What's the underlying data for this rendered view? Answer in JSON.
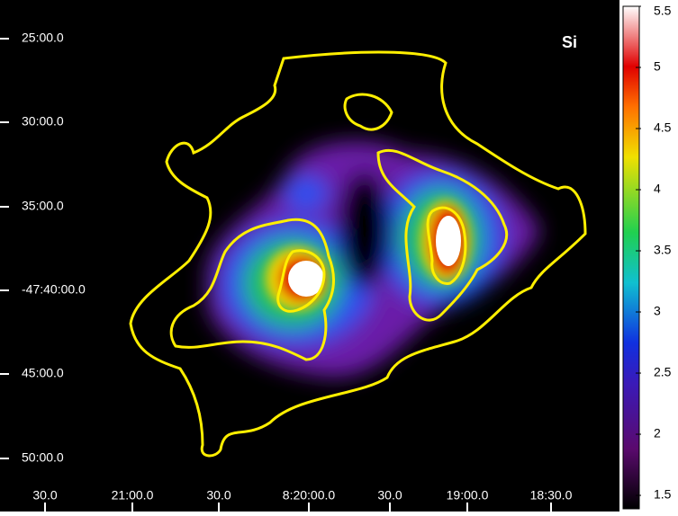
{
  "chart_data": {
    "type": "image",
    "label": "Si",
    "x_tick_labels": [
      "30.0",
      "21:00.0",
      "30.0",
      "8:20:00.0",
      "30.0",
      "19:00.0",
      "18:30.0"
    ],
    "y_tick_labels": [
      "25:00.0",
      "30:00.0",
      "35:00.0",
      "-47:40:00.0",
      "45:00.0",
      "50:00.0"
    ],
    "colorbar": {
      "lim": [
        1.39,
        5.5
      ],
      "ticks": [
        1.5,
        2.0,
        2.5,
        3.0,
        3.5,
        4.0,
        4.5,
        5.0,
        5.5
      ]
    }
  }
}
